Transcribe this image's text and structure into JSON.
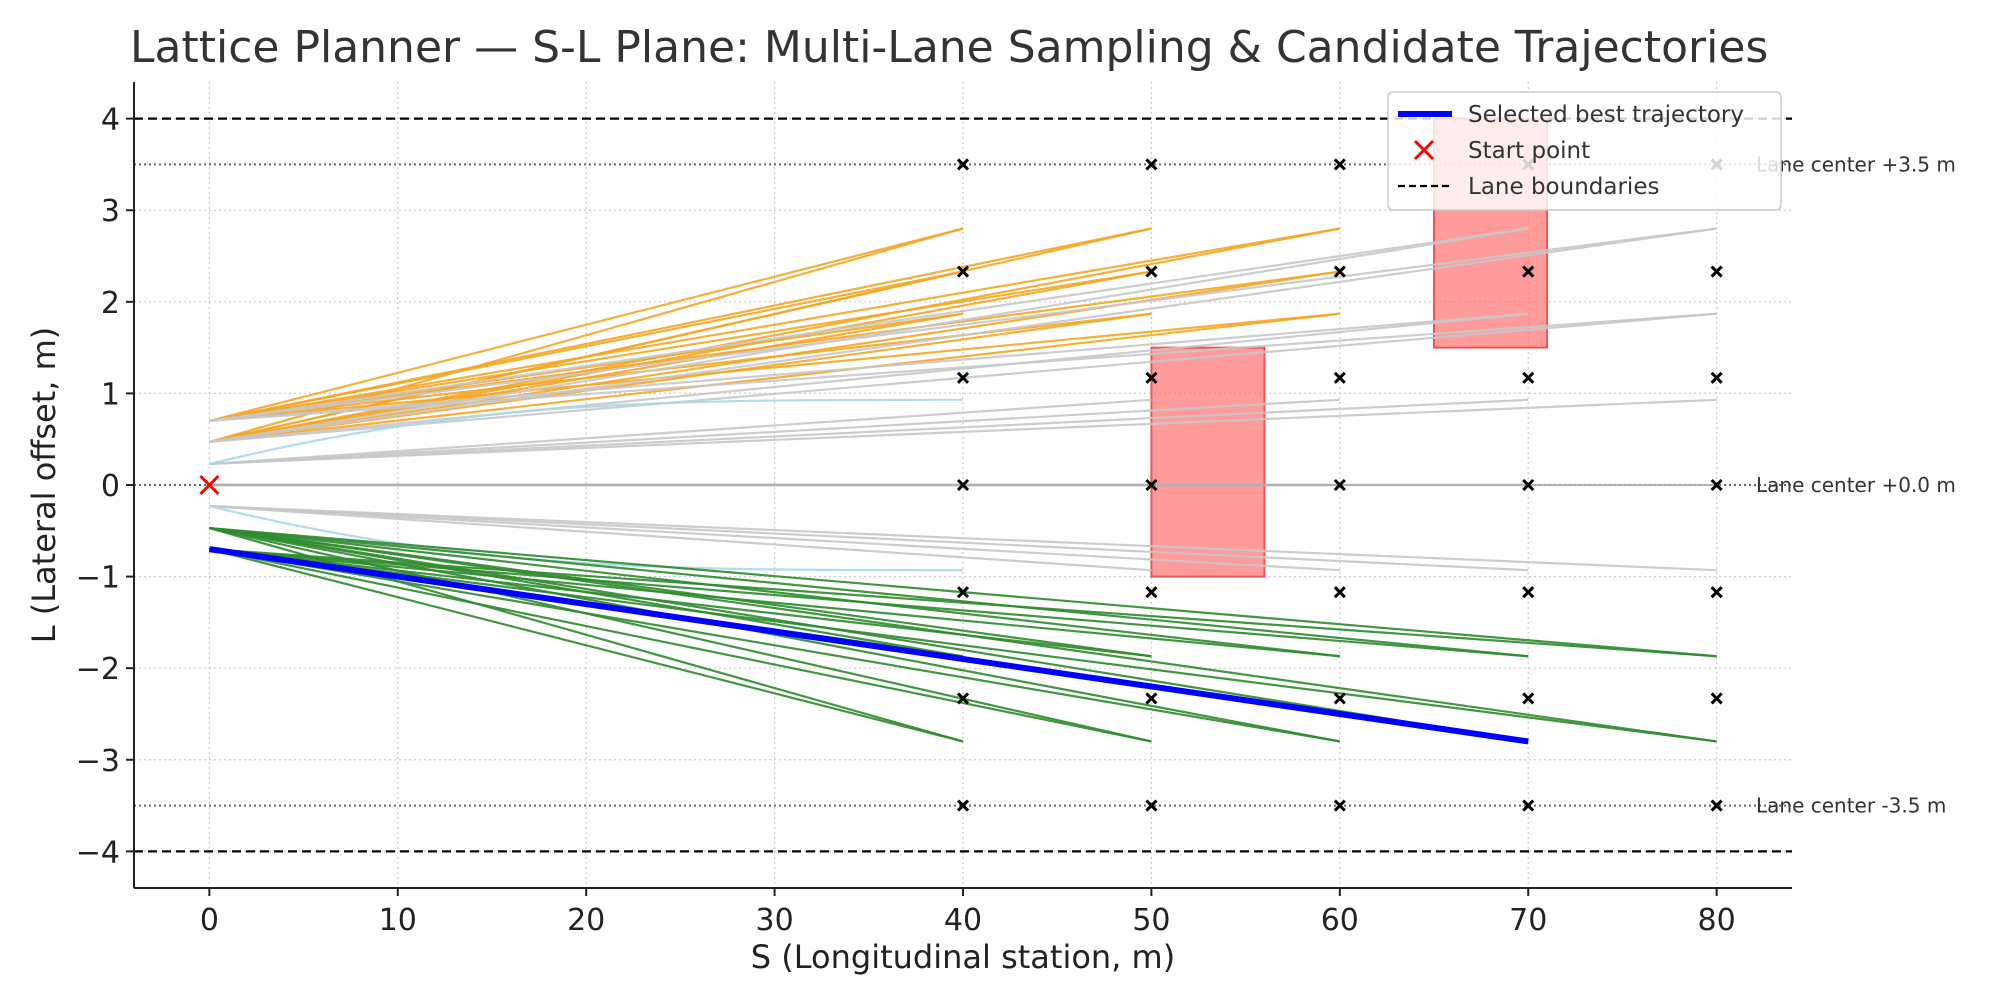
{
  "chart_data": {
    "type": "line",
    "title": "Lattice Planner — S-L Plane: Multi-Lane Sampling & Candidate Trajectories",
    "xlabel": "S (Longitudinal station, m)",
    "ylabel": "L (Lateral offset, m)",
    "xlim": [
      -4,
      84
    ],
    "ylim": [
      -4.4,
      4.4
    ],
    "xticks": [
      0,
      10,
      20,
      30,
      40,
      50,
      60,
      70,
      80
    ],
    "yticks": [
      4,
      3,
      2,
      1,
      0,
      -1,
      -2,
      -3,
      -4
    ],
    "xtick_labels": [
      "0",
      "10",
      "20",
      "30",
      "40",
      "50",
      "60",
      "70",
      "80"
    ],
    "ytick_labels": [
      "4",
      "3",
      "2",
      "1",
      "0",
      "−1",
      "−2",
      "−3",
      "−4"
    ],
    "grid": true,
    "legend_position": "top-right",
    "legend": [
      {
        "label": "Selected best trajectory",
        "kind": "line",
        "color": "#0000ff"
      },
      {
        "label": "Start point",
        "kind": "x",
        "color": "#ff0000"
      },
      {
        "label": "Lane boundaries",
        "kind": "dashed",
        "color": "#000000"
      }
    ],
    "lane_boundaries": [
      4,
      -4
    ],
    "lane_centers": [
      {
        "value": 3.5,
        "label": "Lane center +3.5 m"
      },
      {
        "value": 0,
        "label": "Lane center +0.0 m"
      },
      {
        "value": -3.5,
        "label": "Lane center -3.5 m"
      }
    ],
    "start_point": {
      "s": 0,
      "l": 0,
      "color": "#ff0000"
    },
    "sample_points": {
      "s": [
        40,
        50,
        60,
        70,
        80
      ],
      "l": [
        3.5,
        2.33,
        1.17,
        0,
        -1.17,
        -2.33,
        -3.5
      ],
      "color": "#000000"
    },
    "obstacles": [
      {
        "s_min": 50,
        "s_max": 56,
        "l_min": -1,
        "l_max": 1.5,
        "color": "#ff6666"
      },
      {
        "s_min": 65,
        "s_max": 71,
        "l_min": 1.5,
        "l_max": 4,
        "color": "#ff6666"
      }
    ],
    "candidate_families": [
      {
        "start_l": 0.7,
        "end_s": [
          40,
          50,
          60
        ],
        "end_l": [
          2.8,
          2.33,
          1.87
        ],
        "color": "#f5a623",
        "shape": "linear"
      },
      {
        "start_l": 0.47,
        "end_s": [
          40,
          50,
          60
        ],
        "end_l": [
          2.8,
          2.33,
          1.87
        ],
        "color": "#f5a623",
        "shape": "linear"
      },
      {
        "start_l": 0.7,
        "end_s": [
          70,
          80
        ],
        "end_l": [
          2.8,
          1.87
        ],
        "color": "#c8c8c8",
        "shape": "linear"
      },
      {
        "start_l": 0.47,
        "end_s": [
          70,
          80
        ],
        "end_l": [
          2.8,
          1.87
        ],
        "color": "#c8c8c8",
        "shape": "linear"
      },
      {
        "start_l": 0.23,
        "end_s": [
          50,
          60,
          70,
          80
        ],
        "end_l": [
          0.93
        ],
        "color": "#c8c8c8",
        "shape": "linear"
      },
      {
        "start_l": 0.23,
        "end_s": [
          40
        ],
        "end_l": [
          0.93
        ],
        "color": "#a8d8ea",
        "shape": "curve"
      },
      {
        "start_l": 0,
        "end_s": [
          40,
          50,
          60,
          70,
          80
        ],
        "end_l": [
          0
        ],
        "color": "#b0b0b0",
        "shape": "curve"
      },
      {
        "start_l": -0.23,
        "end_s": [
          50,
          60,
          70,
          80
        ],
        "end_l": [
          -0.93
        ],
        "color": "#c8c8c8",
        "shape": "linear"
      },
      {
        "start_l": -0.23,
        "end_s": [
          40
        ],
        "end_l": [
          -0.93
        ],
        "color": "#a8d8ea",
        "shape": "curve"
      },
      {
        "start_l": -0.47,
        "end_s": [
          40,
          50,
          60,
          70,
          80
        ],
        "end_l": [
          -1.87,
          -2.8
        ],
        "color": "#2e8b2e",
        "shape": "linear"
      },
      {
        "start_l": -0.7,
        "end_s": [
          40,
          50,
          60,
          70,
          80
        ],
        "end_l": [
          -1.87,
          -2.8
        ],
        "color": "#2e8b2e",
        "shape": "linear"
      }
    ],
    "best_trajectory": {
      "s": [
        0,
        70
      ],
      "l": [
        -0.7,
        -2.8
      ],
      "color": "#0000ff"
    }
  }
}
